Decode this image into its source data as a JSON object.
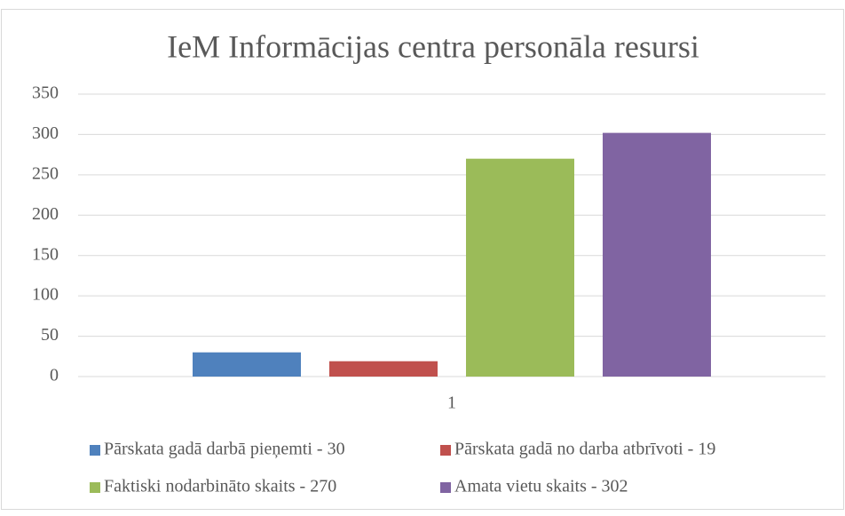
{
  "chart_data": {
    "type": "bar",
    "title": "IeM Informācijas centra personāla resursi",
    "categories": [
      "1"
    ],
    "series": [
      {
        "name": "Pārskata gadā darbā pieņemti - 30",
        "color": "#4f81bd",
        "values": [
          30
        ]
      },
      {
        "name": "Pārskata gadā no darba atbrīvoti - 19",
        "color": "#c0504d",
        "values": [
          19
        ]
      },
      {
        "name": "Faktiski nodarbināto skaits - 270",
        "color": "#9bbb59",
        "values": [
          270
        ]
      },
      {
        "name": "Amata vietu skaits - 302",
        "color": "#8064a2",
        "values": [
          302
        ]
      }
    ],
    "ylim": [
      0,
      350
    ],
    "yticks": [
      0,
      50,
      100,
      150,
      200,
      250,
      300,
      350
    ],
    "grid": true,
    "legend": "bottom"
  }
}
